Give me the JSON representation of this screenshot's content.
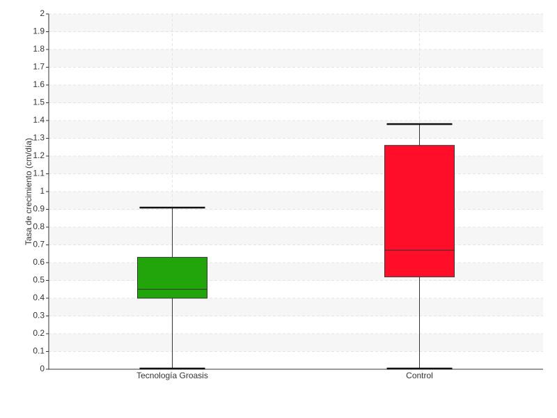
{
  "chart_data": {
    "type": "box",
    "y_label": "Tasa de crecimiento (cm/día)",
    "categories": [
      "Tecnología Groasis",
      "Control"
    ],
    "colors": [
      "#22a50b",
      "#ff0e2a"
    ],
    "boxes": [
      {
        "min": 0,
        "q1": 0.4,
        "median": 0.45,
        "q3": 0.63,
        "max": 0.91
      },
      {
        "min": 0,
        "q1": 0.52,
        "median": 0.67,
        "q3": 1.26,
        "max": 1.38
      }
    ],
    "ylim": [
      0,
      2
    ],
    "yticks": [
      0,
      0.1,
      0.2,
      0.3,
      0.4,
      0.5,
      0.6,
      0.7,
      0.8,
      0.9,
      1,
      1.1,
      1.2,
      1.3,
      1.4,
      1.5,
      1.6,
      1.7,
      1.8,
      1.9,
      2
    ],
    "grid": true
  }
}
